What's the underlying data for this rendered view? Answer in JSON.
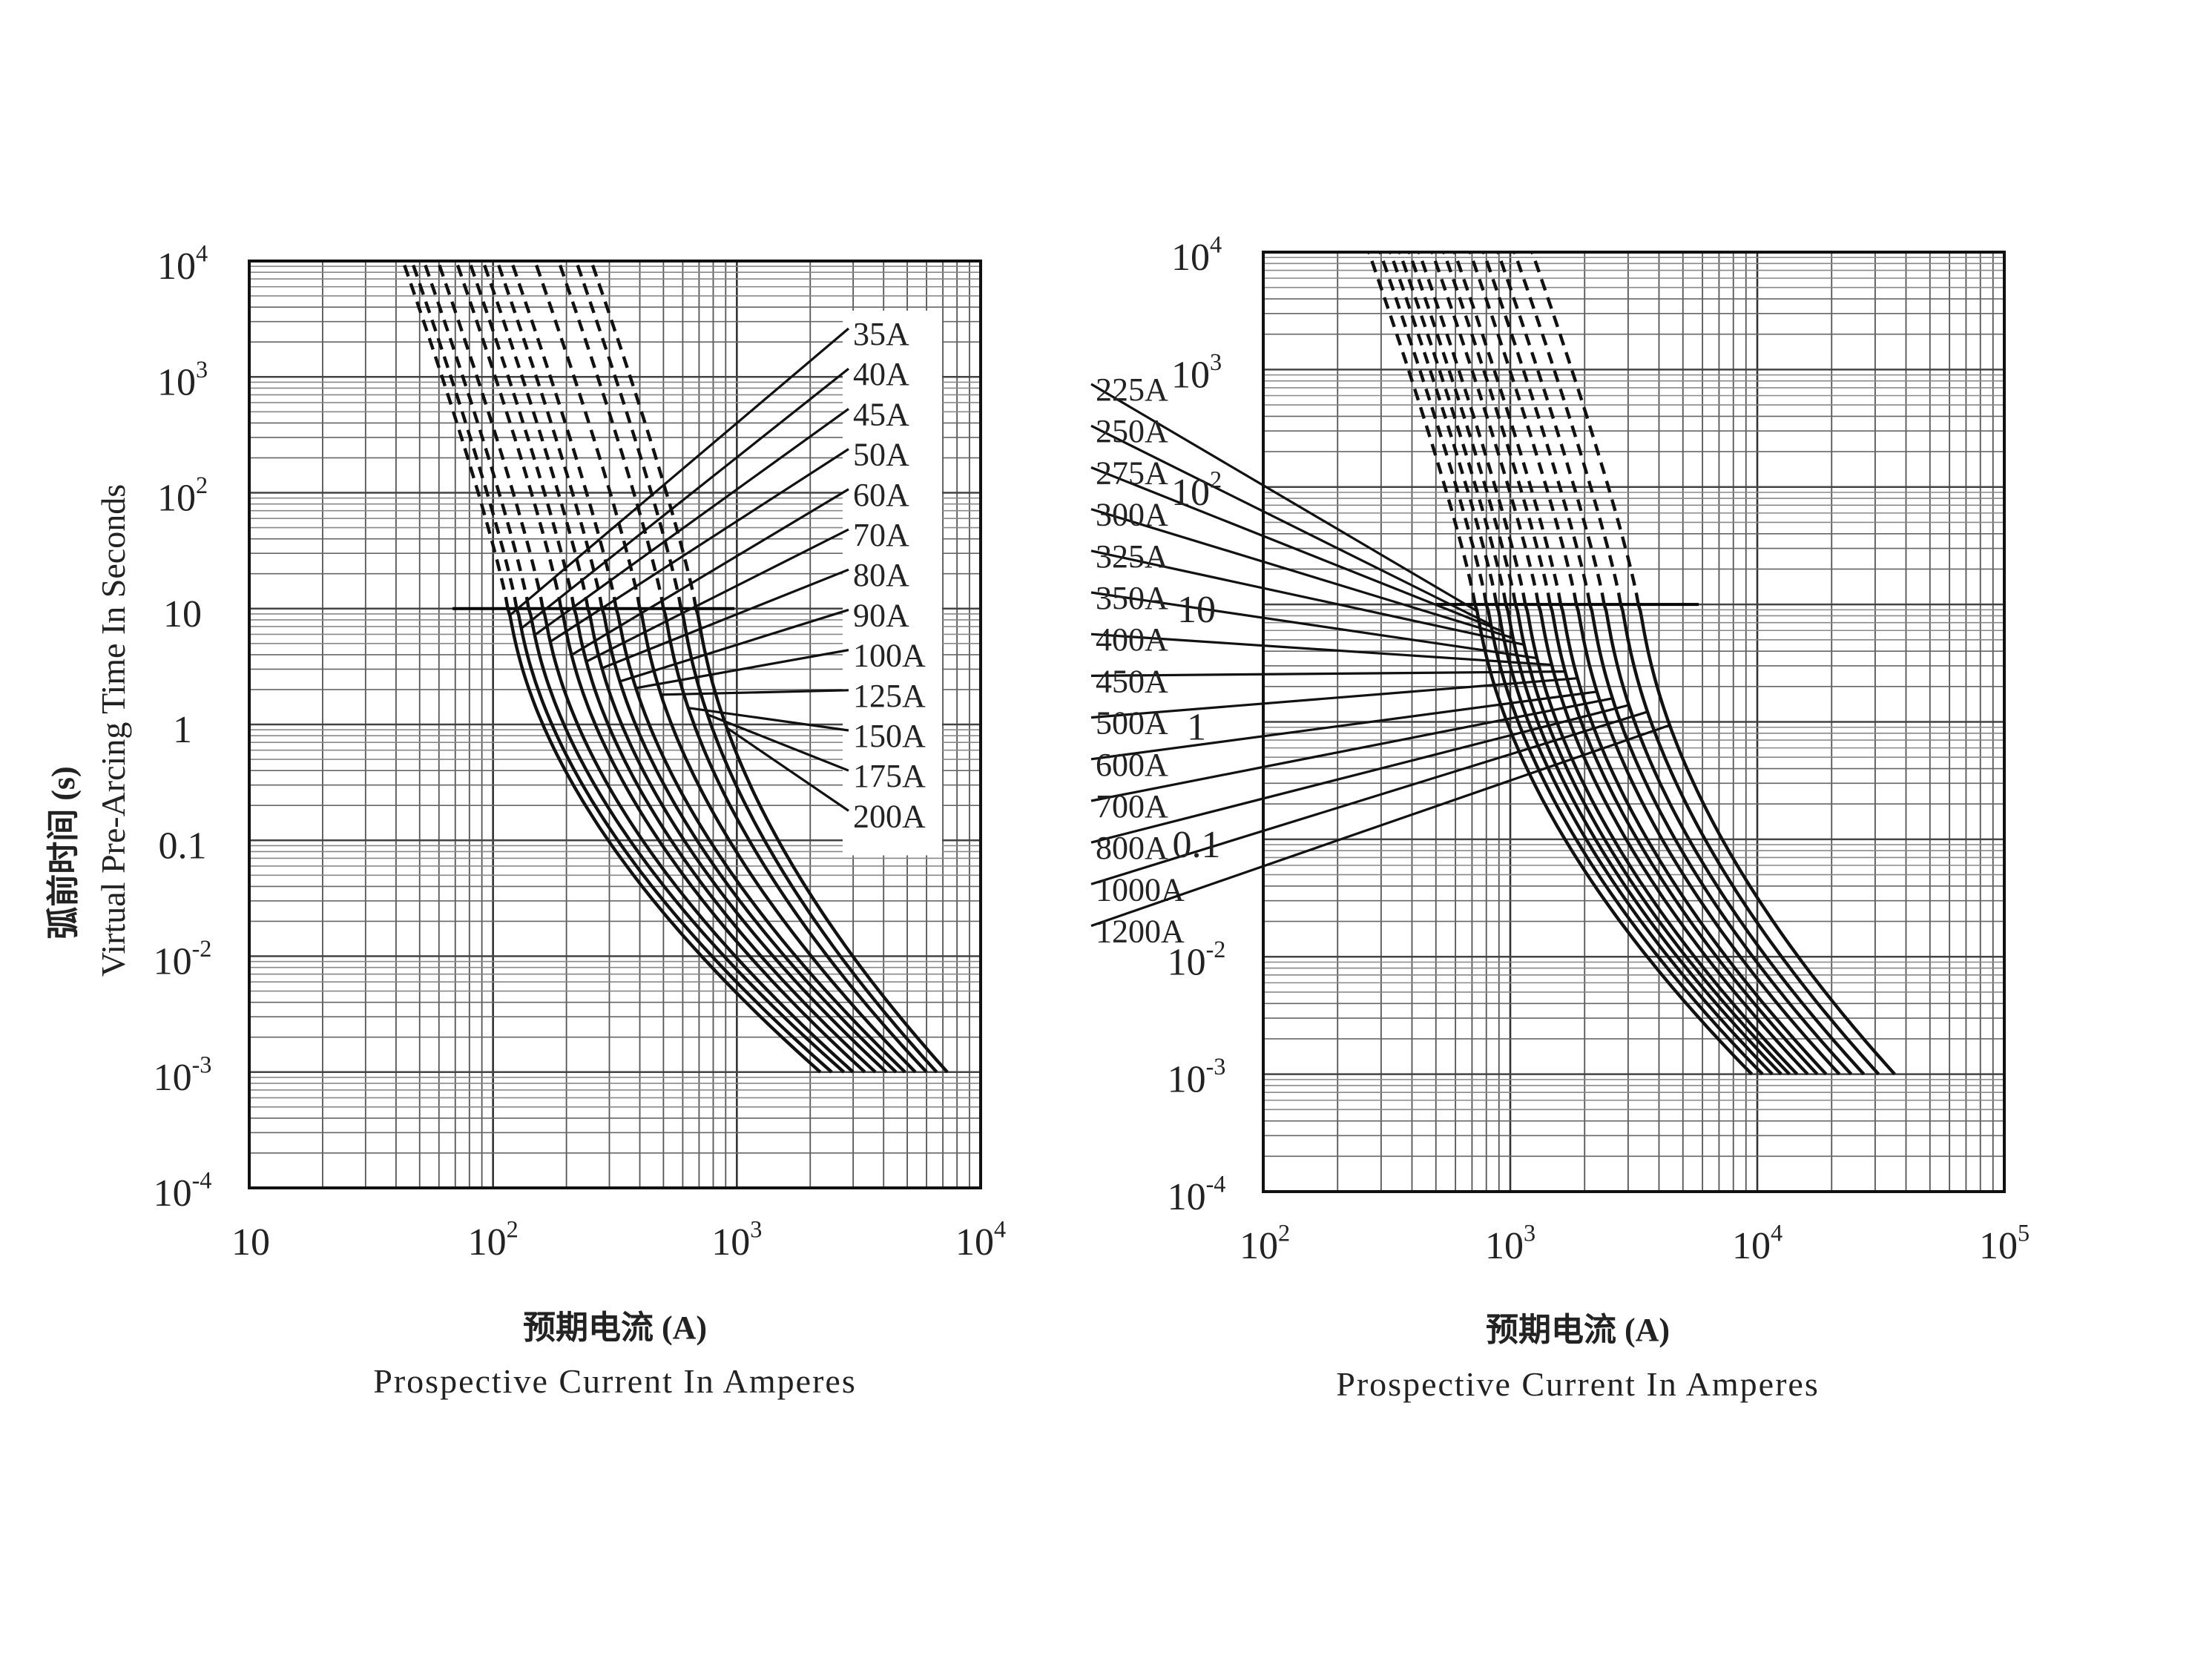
{
  "y_axis_title": {
    "zh": "弧前时间 (s)",
    "en": "Virtual Pre-Arcing Time In Seconds"
  },
  "chart_data": [
    {
      "type": "line",
      "xscale": "log",
      "yscale": "log",
      "xlim": [
        10,
        10000
      ],
      "ylim": [
        0.0001,
        10000
      ],
      "x_ticks": [
        {
          "base": "10",
          "exp": ""
        },
        {
          "base": "10",
          "exp": "2"
        },
        {
          "base": "10",
          "exp": "3"
        },
        {
          "base": "10",
          "exp": "4"
        }
      ],
      "y_ticks": [
        {
          "base": "10",
          "exp": "4"
        },
        {
          "base": "10",
          "exp": "3"
        },
        {
          "base": "10",
          "exp": "2"
        },
        {
          "base": "10",
          "exp": ""
        },
        {
          "base": "1",
          "exp": ""
        },
        {
          "base": "0.1",
          "exp": ""
        },
        {
          "base": "10",
          "exp": "-2"
        },
        {
          "base": "10",
          "exp": "-3"
        },
        {
          "base": "10",
          "exp": "-4"
        }
      ],
      "xlabel_zh": "预期电流 (A)",
      "xlabel_en": "Prospective Current In Amperes",
      "grid": true,
      "legend_position": "right",
      "dashed_above_seconds": 10,
      "series": [
        {
          "name": "35A",
          "i_10s": 115,
          "i_1ms": 2200
        },
        {
          "name": "40A",
          "i_10s": 125,
          "i_1ms": 2450
        },
        {
          "name": "45A",
          "i_10s": 140,
          "i_1ms": 2750
        },
        {
          "name": "50A",
          "i_10s": 160,
          "i_1ms": 3000
        },
        {
          "name": "60A",
          "i_10s": 190,
          "i_1ms": 3350
        },
        {
          "name": "70A",
          "i_10s": 215,
          "i_1ms": 3700
        },
        {
          "name": "80A",
          "i_10s": 245,
          "i_1ms": 4100
        },
        {
          "name": "90A",
          "i_10s": 280,
          "i_1ms": 4500
        },
        {
          "name": "100A",
          "i_10s": 320,
          "i_1ms": 4900
        },
        {
          "name": "125A",
          "i_10s": 400,
          "i_1ms": 5400
        },
        {
          "name": "150A",
          "i_10s": 500,
          "i_1ms": 6000
        },
        {
          "name": "175A",
          "i_10s": 590,
          "i_1ms": 6600
        },
        {
          "name": "200A",
          "i_10s": 680,
          "i_1ms": 7300
        }
      ]
    },
    {
      "type": "line",
      "xscale": "log",
      "yscale": "log",
      "xlim": [
        100,
        100000
      ],
      "ylim": [
        0.0001,
        10000
      ],
      "x_ticks": [
        {
          "base": "10",
          "exp": "2"
        },
        {
          "base": "10",
          "exp": "3"
        },
        {
          "base": "10",
          "exp": "4"
        },
        {
          "base": "10",
          "exp": "5"
        }
      ],
      "y_ticks": [
        {
          "base": "10",
          "exp": "4"
        },
        {
          "base": "10",
          "exp": "3"
        },
        {
          "base": "10",
          "exp": "2"
        },
        {
          "base": "10",
          "exp": ""
        },
        {
          "base": "1",
          "exp": ""
        },
        {
          "base": "0.1",
          "exp": ""
        },
        {
          "base": "10",
          "exp": "-2"
        },
        {
          "base": "10",
          "exp": "-3"
        },
        {
          "base": "10",
          "exp": "-4"
        }
      ],
      "xlabel_zh": "预期电流 (A)",
      "xlabel_en": "Prospective Current In Amperes",
      "grid": true,
      "legend_position": "right",
      "dashed_above_seconds": 10,
      "series": [
        {
          "name": "225A",
          "i_10s": 720,
          "i_1ms": 9500
        },
        {
          "name": "250A",
          "i_10s": 800,
          "i_1ms": 10500
        },
        {
          "name": "275A",
          "i_10s": 880,
          "i_1ms": 11500
        },
        {
          "name": "300A",
          "i_10s": 960,
          "i_1ms": 12500
        },
        {
          "name": "325A",
          "i_10s": 1050,
          "i_1ms": 13500
        },
        {
          "name": "350A",
          "i_10s": 1150,
          "i_1ms": 14500
        },
        {
          "name": "400A",
          "i_10s": 1300,
          "i_1ms": 16000
        },
        {
          "name": "450A",
          "i_10s": 1450,
          "i_1ms": 17500
        },
        {
          "name": "500A",
          "i_10s": 1600,
          "i_1ms": 19000
        },
        {
          "name": "600A",
          "i_10s": 1850,
          "i_1ms": 21500
        },
        {
          "name": "700A",
          "i_10s": 2100,
          "i_1ms": 24000
        },
        {
          "name": "800A",
          "i_10s": 2400,
          "i_1ms": 27000
        },
        {
          "name": "1000A",
          "i_10s": 2800,
          "i_1ms": 31000
        },
        {
          "name": "1200A",
          "i_10s": 3300,
          "i_1ms": 36000
        }
      ]
    }
  ]
}
